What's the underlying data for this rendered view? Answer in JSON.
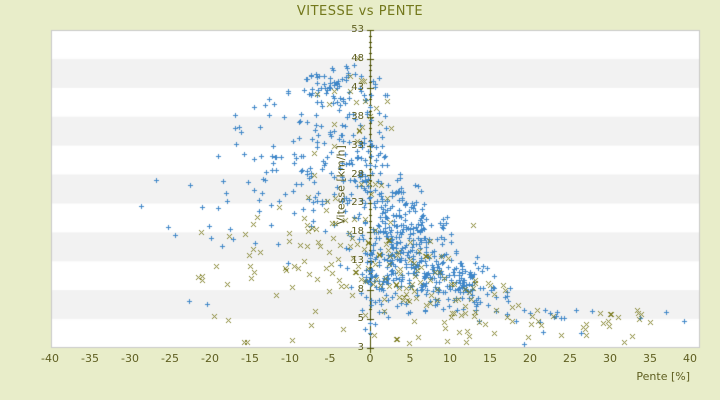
{
  "page": {
    "background": "#e8edc9"
  },
  "chart_data": {
    "type": "scatter",
    "title": "VITESSE vs PENTE",
    "xlabel": "Pente [%]",
    "ylabel": "Vitesse [km/h]",
    "xlim": [
      -40,
      40
    ],
    "ylim": [
      3,
      53
    ],
    "x_ticks": [
      -40,
      -35,
      -30,
      -25,
      -20,
      -15,
      -10,
      -5,
      0,
      5,
      10,
      15,
      20,
      25,
      30,
      35,
      40
    ],
    "y_ticks": [
      53,
      48,
      43,
      38,
      33,
      28,
      23,
      18,
      13,
      8,
      5,
      3
    ],
    "grid": "horizontal-alternating-bands",
    "legend": "none",
    "vertical_axis_at_x": 0,
    "colors": {
      "title": "#73781c",
      "tick_label": "#5e5e20",
      "axis_line": "#4b4f00",
      "plot_bg": "#ffffff",
      "band": "#f2f2f2",
      "border": "#c9c9c9",
      "series_blue": "#3e86c8",
      "series_olive": "#7d7d22"
    },
    "seed": 12345,
    "envelope": {
      "vmin": 3.2,
      "vmax": 50.5,
      "xmin": -33,
      "xmax": 40.5,
      "pos": {
        "v0": 48,
        "k": 2.2,
        "floor": 6
      },
      "neg": {
        "v0": 51,
        "k": 0.75
      }
    },
    "series": [
      {
        "name": "blue-plus-series",
        "marker": "plus",
        "color": "#3e86c8",
        "clusters": [
          {
            "cx": 3.5,
            "cy": 17,
            "sx": 2.8,
            "sy": 4.2,
            "n": 240
          },
          {
            "cx": 7.5,
            "cy": 11,
            "sx": 3.0,
            "sy": 2.2,
            "n": 120
          },
          {
            "cx": -0.5,
            "cy": 27,
            "sx": 2.2,
            "sy": 5.0,
            "n": 100
          },
          {
            "cx": -3.5,
            "cy": 42,
            "sx": 3.2,
            "sy": 4.5,
            "n": 90
          },
          {
            "cx": -9,
            "cy": 31,
            "sx": 4.5,
            "sy": 6.5,
            "n": 80
          },
          {
            "cx": -17,
            "cy": 22,
            "sx": 6.0,
            "sy": 7.0,
            "n": 40
          },
          {
            "cx": 13,
            "cy": 8.5,
            "sx": 3.5,
            "sy": 2.2,
            "n": 70
          },
          {
            "cx": 21,
            "cy": 6.5,
            "sx": 5.0,
            "sy": 1.5,
            "n": 25
          },
          {
            "cx": 0.5,
            "cy": 9,
            "sx": 1.5,
            "sy": 3.0,
            "n": 45
          },
          {
            "cx": 35,
            "cy": 5,
            "sx": 3.0,
            "sy": 1.0,
            "n": 4
          }
        ]
      },
      {
        "name": "olive-x-series",
        "marker": "x",
        "color": "#7d7d22",
        "clusters": [
          {
            "cx": 2,
            "cy": 12,
            "sx": 4.0,
            "sy": 4.0,
            "n": 70
          },
          {
            "cx": -7,
            "cy": 15,
            "sx": 5.5,
            "sy": 6.0,
            "n": 45
          },
          {
            "cx": -3,
            "cy": 30,
            "sx": 3.5,
            "sy": 8.0,
            "n": 25
          },
          {
            "cx": 11,
            "cy": 7,
            "sx": 5.0,
            "sy": 2.5,
            "n": 45
          },
          {
            "cx": 22,
            "cy": 5.5,
            "sx": 6.0,
            "sy": 1.5,
            "n": 25
          },
          {
            "cx": -16,
            "cy": 9,
            "sx": 5.0,
            "sy": 4.0,
            "n": 18
          },
          {
            "cx": -1,
            "cy": 43,
            "sx": 3.0,
            "sy": 3.0,
            "n": 8
          },
          {
            "cx": 32,
            "cy": 5,
            "sx": 4.0,
            "sy": 1.2,
            "n": 6
          }
        ]
      }
    ]
  }
}
